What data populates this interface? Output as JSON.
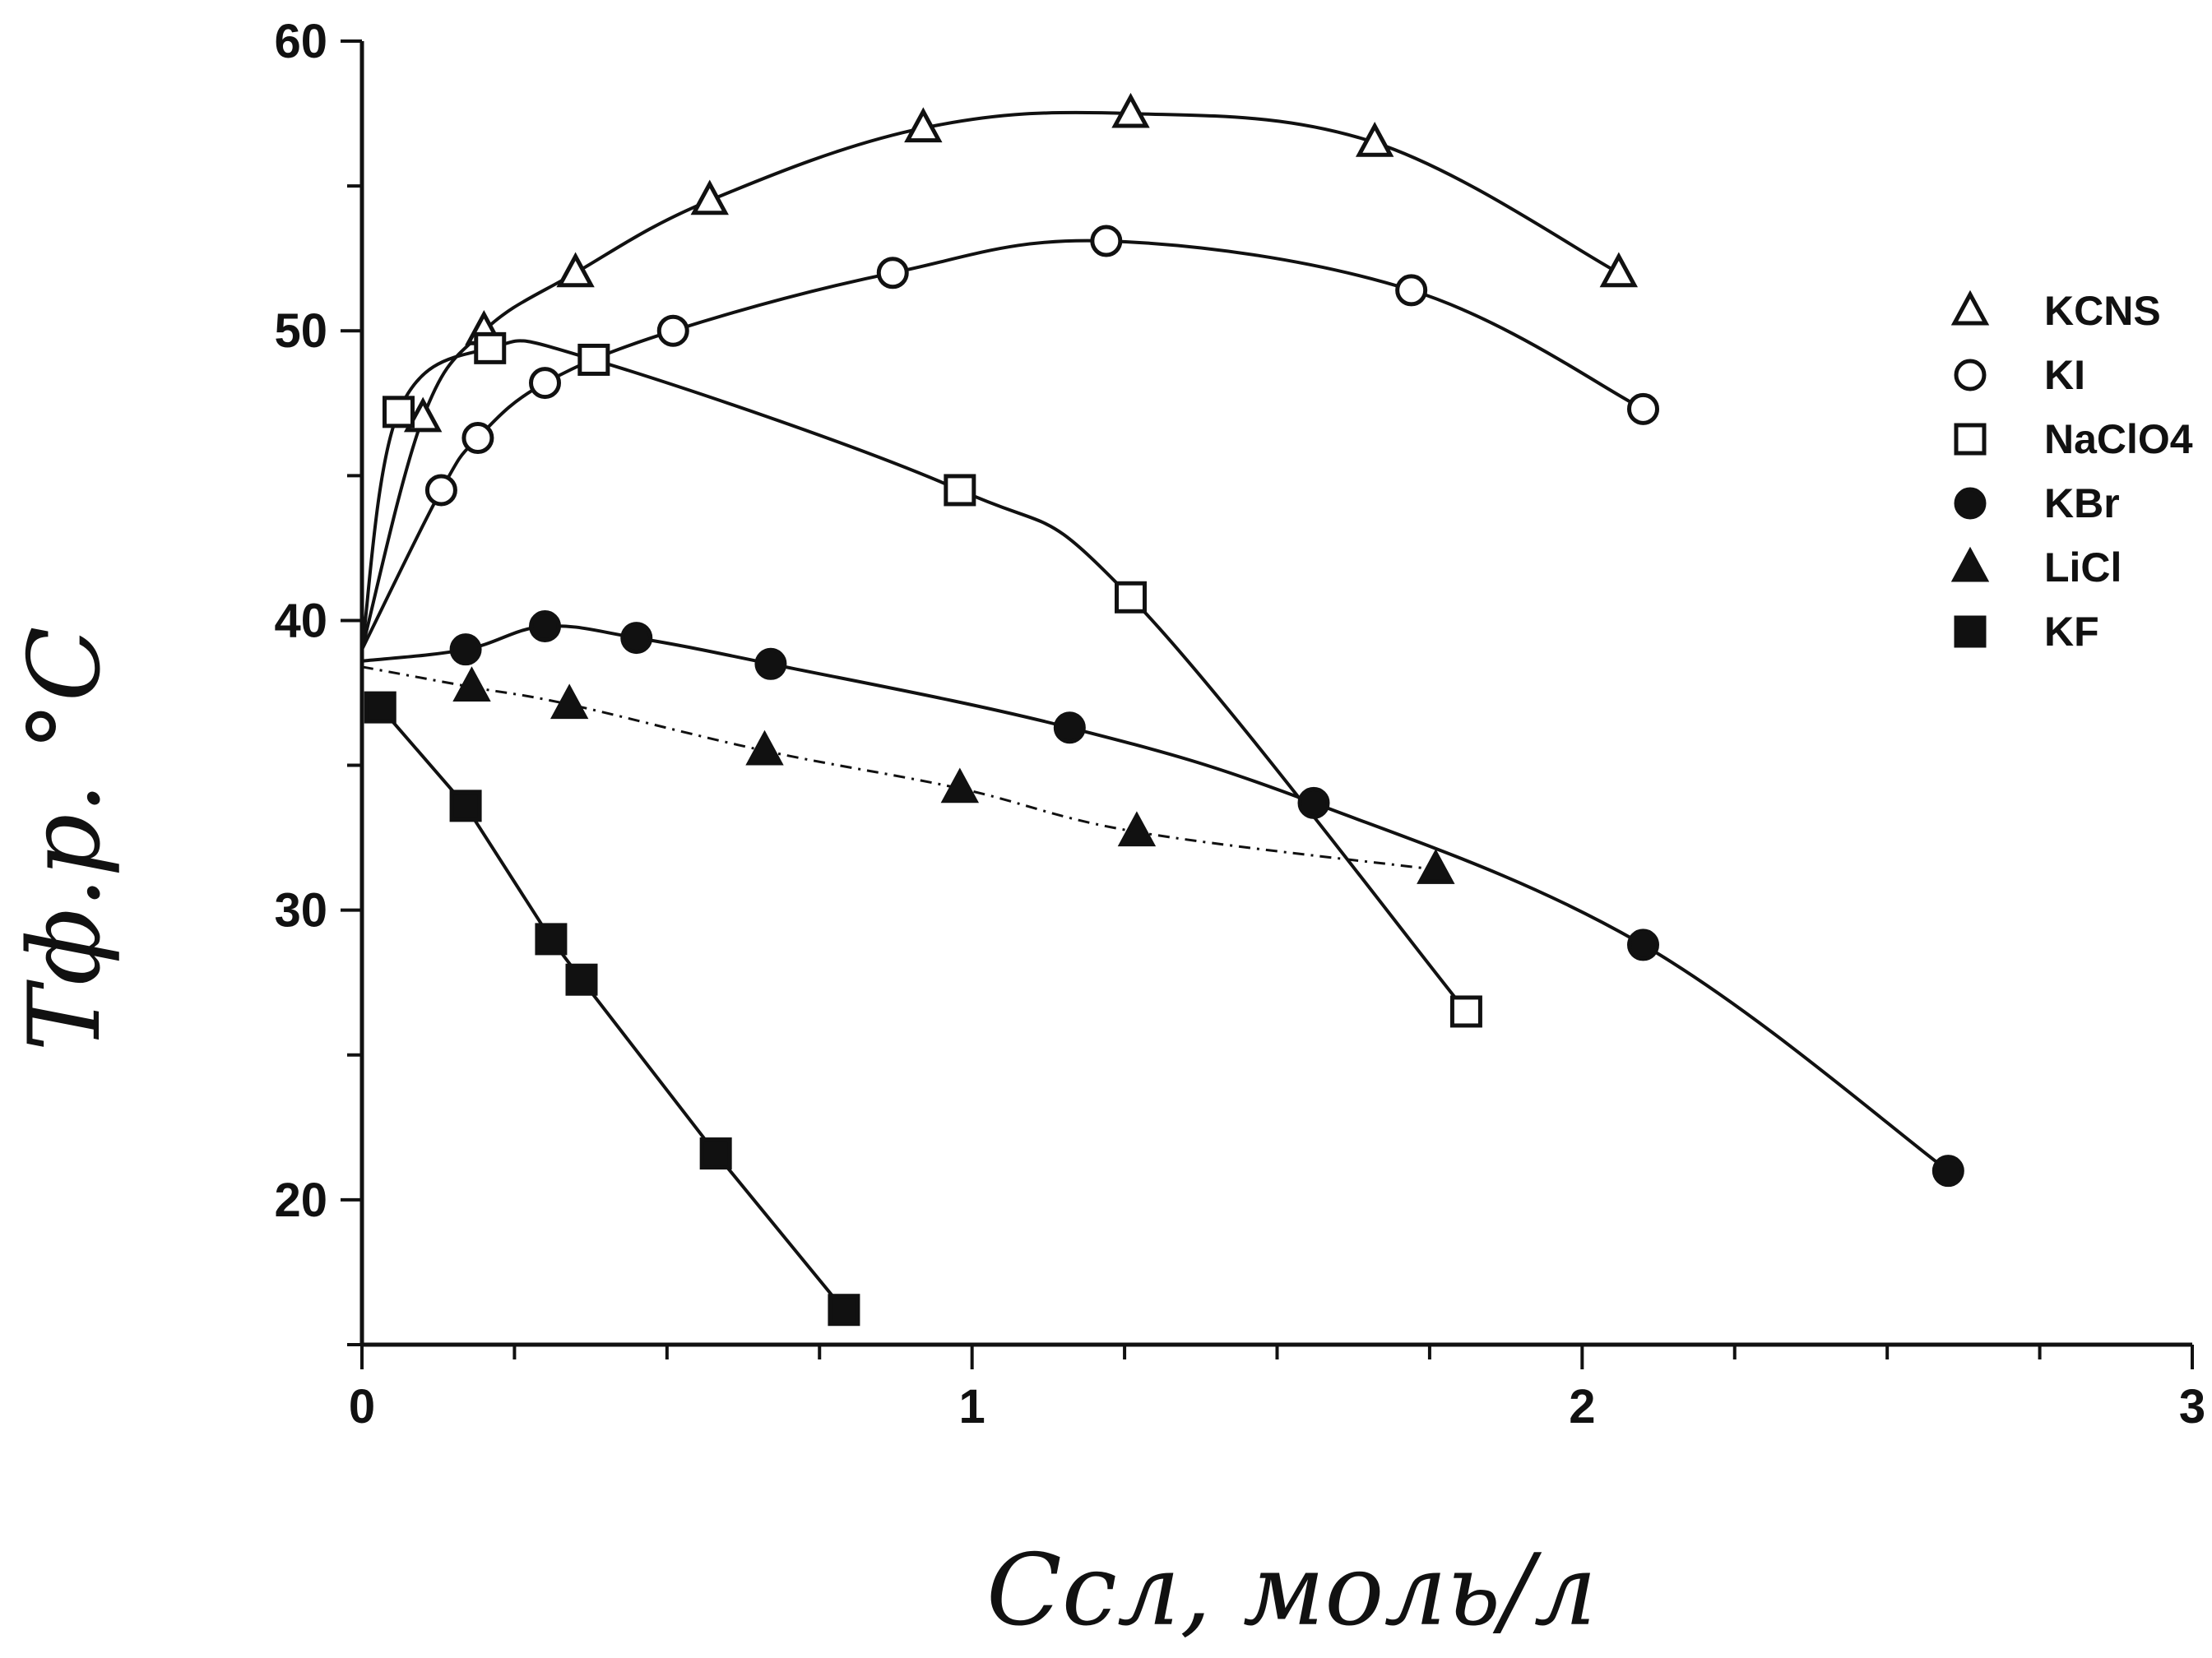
{
  "chart_data": {
    "type": "line",
    "title": "",
    "xlabel": "Cсл, моль/л",
    "ylabel": "Tф.р. °C",
    "xlim": [
      0,
      3
    ],
    "ylim": [
      15,
      60
    ],
    "xticks": [
      "0",
      "1",
      "2",
      "3"
    ],
    "yticks": [
      "20",
      "30",
      "40",
      "50",
      "60"
    ],
    "grid": false,
    "legend_position": "right",
    "series": [
      {
        "name": "KCNS",
        "marker": "open-triangle",
        "line": "solid",
        "x": [
          0,
          0.1,
          0.2,
          0.35,
          0.57,
          0.92,
          1.26,
          1.66,
          2.06
        ],
        "y": [
          39,
          47,
          50,
          52,
          54.5,
          57,
          57.5,
          56.5,
          52
        ]
      },
      {
        "name": "KI",
        "marker": "open-circle",
        "line": "solid",
        "x": [
          0,
          0.13,
          0.19,
          0.3,
          0.51,
          0.87,
          1.22,
          1.72,
          2.1
        ],
        "y": [
          39,
          44.5,
          46.3,
          48.2,
          50,
          52,
          53.1,
          51.4,
          47.3
        ]
      },
      {
        "name": "NaClO4",
        "marker": "open-square",
        "line": "solid",
        "x": [
          0,
          0.06,
          0.21,
          0.38,
          0.98,
          1.26,
          1.81
        ],
        "y": [
          39,
          47.2,
          49.4,
          49,
          44.5,
          40.8,
          26.5
        ]
      },
      {
        "name": "KBr",
        "marker": "filled-circle",
        "line": "solid",
        "x": [
          0,
          0.17,
          0.3,
          0.45,
          0.67,
          1.16,
          1.56,
          2.1,
          2.6
        ],
        "y": [
          38.6,
          39,
          39.8,
          39.4,
          38.5,
          36.3,
          33.7,
          28.8,
          21
        ]
      },
      {
        "name": "LiCl",
        "marker": "filled-triangle",
        "line": "dash-dot",
        "x": [
          0,
          0.18,
          0.34,
          0.66,
          0.98,
          1.27,
          1.76
        ],
        "y": [
          38.4,
          37.7,
          37.1,
          35.5,
          34.2,
          32.7,
          31.4
        ]
      },
      {
        "name": "KF",
        "marker": "filled-square",
        "line": "solid",
        "x": [
          0.03,
          0.17,
          0.31,
          0.36,
          0.58,
          0.79
        ],
        "y": [
          37,
          33.6,
          29,
          27.6,
          21.6,
          16.2
        ]
      }
    ]
  }
}
